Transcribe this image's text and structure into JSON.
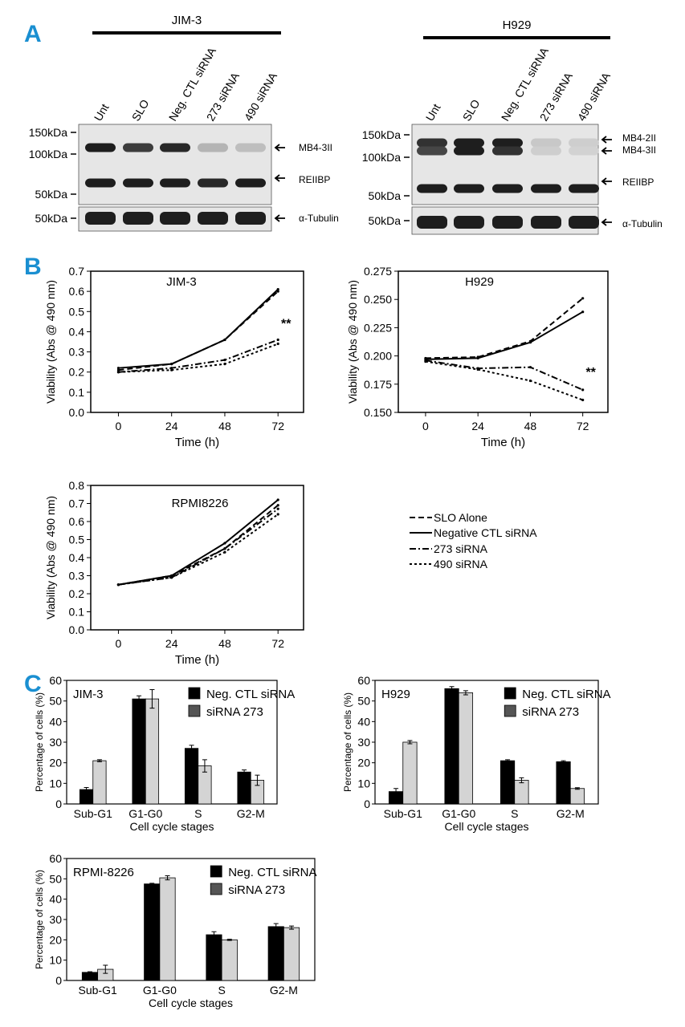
{
  "panel_labels": {
    "a": "A",
    "b": "B",
    "c": "C"
  },
  "blots": [
    {
      "cell_line": "JIM-3",
      "lanes": [
        "Unt",
        "SLO",
        "Neg. CTL siRNA",
        "273 siRNA",
        "490 siRNA"
      ],
      "markers": [
        "150kDa",
        "100kDa",
        "50kDa",
        "50kDa"
      ],
      "right_labels": [
        "MB4-3II",
        "REIIBP",
        "α-Tubulin"
      ],
      "band_intensity": {
        "MB4-3II": [
          1.0,
          0.85,
          0.95,
          0.25,
          0.2
        ],
        "REIIBP": [
          1.0,
          1.0,
          1.0,
          0.95,
          1.0
        ],
        "α-Tubulin": [
          1.0,
          1.0,
          1.0,
          1.0,
          1.0
        ]
      }
    },
    {
      "cell_line": "H929",
      "lanes": [
        "Unt",
        "SLO",
        "Neg. CTL siRNA",
        "273 siRNA",
        "490 siRNA"
      ],
      "markers": [
        "150kDa",
        "100kDa",
        "50kDa",
        "50kDa"
      ],
      "right_labels": [
        "MB4-2II",
        "MB4-3II",
        "REIIBP",
        "α-Tubulin"
      ],
      "band_intensity": {
        "MB4-2II": [
          0.9,
          1.0,
          1.0,
          0.15,
          0.12
        ],
        "MB4-3II": [
          0.8,
          1.0,
          0.9,
          0.12,
          0.1
        ],
        "REIIBP": [
          1.0,
          1.0,
          1.0,
          1.0,
          1.0
        ],
        "α-Tubulin": [
          1.0,
          1.0,
          1.0,
          1.0,
          1.0
        ]
      }
    }
  ],
  "legend_viability": [
    "SLO Alone",
    "Negative CTL siRNA",
    "273 siRNA",
    "490 siRNA"
  ],
  "chart_data": [
    {
      "type": "line",
      "title": "JIM-3",
      "xlabel": "Time (h)",
      "ylabel": "Viability (Abs @ 490 nm)",
      "x": [
        0,
        24,
        48,
        72
      ],
      "ylim": [
        0.0,
        0.7
      ],
      "yticks": [
        "0.0",
        "0.1",
        "0.2",
        "0.3",
        "0.4",
        "0.5",
        "0.6",
        "0.7"
      ],
      "annotation": "**",
      "series": [
        {
          "name": "SLO Alone",
          "values": [
            0.21,
            0.24,
            0.36,
            0.6
          ]
        },
        {
          "name": "Negative CTL siRNA",
          "values": [
            0.22,
            0.24,
            0.36,
            0.61
          ]
        },
        {
          "name": "273 siRNA",
          "values": [
            0.2,
            0.22,
            0.26,
            0.36
          ]
        },
        {
          "name": "490 siRNA",
          "values": [
            0.2,
            0.21,
            0.24,
            0.34
          ]
        }
      ]
    },
    {
      "type": "line",
      "title": "H929",
      "xlabel": "Time (h)",
      "ylabel": "Viability (Abs @ 490 nm)",
      "x": [
        0,
        24,
        48,
        72
      ],
      "ylim": [
        0.15,
        0.275
      ],
      "yticks": [
        "0.150",
        "0.175",
        "0.200",
        "0.225",
        "0.250",
        "0.275"
      ],
      "annotation": "**",
      "series": [
        {
          "name": "SLO Alone",
          "values": [
            0.198,
            0.199,
            0.213,
            0.251
          ]
        },
        {
          "name": "Negative CTL siRNA",
          "values": [
            0.197,
            0.198,
            0.212,
            0.239
          ]
        },
        {
          "name": "273 siRNA",
          "values": [
            0.196,
            0.189,
            0.19,
            0.17
          ]
        },
        {
          "name": "490 siRNA",
          "values": [
            0.195,
            0.188,
            0.178,
            0.161
          ]
        }
      ]
    },
    {
      "type": "line",
      "title": "RPMI8226",
      "xlabel": "Time (h)",
      "ylabel": "Viability (Abs @ 490 nm)",
      "x": [
        0,
        24,
        48,
        72
      ],
      "ylim": [
        0.0,
        0.8
      ],
      "yticks": [
        "0.0",
        "0.1",
        "0.2",
        "0.3",
        "0.4",
        "0.5",
        "0.6",
        "0.7",
        "0.8"
      ],
      "annotation": "",
      "series": [
        {
          "name": "SLO Alone",
          "values": [
            0.25,
            0.3,
            0.45,
            0.69
          ]
        },
        {
          "name": "Negative CTL siRNA",
          "values": [
            0.25,
            0.3,
            0.48,
            0.72
          ]
        },
        {
          "name": "273 siRNA",
          "values": [
            0.25,
            0.29,
            0.45,
            0.67
          ]
        },
        {
          "name": "490 siRNA",
          "values": [
            0.25,
            0.29,
            0.43,
            0.64
          ]
        }
      ]
    },
    {
      "type": "bar",
      "title": "JIM-3",
      "xlabel": "Cell cycle stages",
      "ylabel": "Percentage of cells (%)",
      "categories": [
        "Sub-G1",
        "G1-G0",
        "S",
        "G2-M"
      ],
      "ylim": [
        0,
        60
      ],
      "yticks": [
        "0",
        "10",
        "20",
        "30",
        "40",
        "50",
        "60"
      ],
      "legend": [
        "Neg. CTL siRNA",
        "siRNA 273"
      ],
      "series": [
        {
          "name": "Neg. CTL siRNA",
          "values": [
            7,
            51,
            27,
            15.5
          ],
          "errors": [
            1,
            1.5,
            1.5,
            1
          ]
        },
        {
          "name": "siRNA 273",
          "values": [
            21,
            51,
            18.5,
            11.5
          ],
          "errors": [
            0.5,
            4.5,
            3,
            2.5
          ]
        }
      ]
    },
    {
      "type": "bar",
      "title": "H929",
      "xlabel": "Cell cycle stages",
      "ylabel": "Percentage of cells (%)",
      "categories": [
        "Sub-G1",
        "G1-G0",
        "S",
        "G2-M"
      ],
      "ylim": [
        0,
        60
      ],
      "yticks": [
        "0",
        "10",
        "20",
        "30",
        "40",
        "50",
        "60"
      ],
      "legend": [
        "Neg. CTL siRNA",
        "siRNA 273"
      ],
      "series": [
        {
          "name": "Neg. CTL siRNA",
          "values": [
            6,
            56,
            21,
            20.5
          ],
          "errors": [
            1.5,
            1,
            0.5,
            0.5
          ]
        },
        {
          "name": "siRNA 273",
          "values": [
            30,
            54,
            11.5,
            7.5
          ],
          "errors": [
            0.8,
            1,
            1.2,
            0.4
          ]
        }
      ]
    },
    {
      "type": "bar",
      "title": "RPMI-8226",
      "xlabel": "Cell cycle stages",
      "ylabel": "Percentage of cells (%)",
      "categories": [
        "Sub-G1",
        "G1-G0",
        "S",
        "G2-M"
      ],
      "ylim": [
        0,
        60
      ],
      "yticks": [
        "0",
        "10",
        "20",
        "30",
        "40",
        "50",
        "60"
      ],
      "legend": [
        "Neg. CTL siRNA",
        "siRNA 273"
      ],
      "series": [
        {
          "name": "Neg. CTL siRNA",
          "values": [
            4,
            47.5,
            22.5,
            26.5
          ],
          "errors": [
            0.3,
            0.3,
            1.5,
            1.5
          ]
        },
        {
          "name": "siRNA 273",
          "values": [
            5.5,
            50.5,
            20,
            26
          ],
          "errors": [
            2,
            1,
            0.3,
            0.8
          ]
        }
      ]
    }
  ],
  "colors": {
    "label_blue": "#1a8fd1",
    "bar_dark": "#000000",
    "bar_light": "#d4d4d4",
    "legend_light": "#555555"
  }
}
